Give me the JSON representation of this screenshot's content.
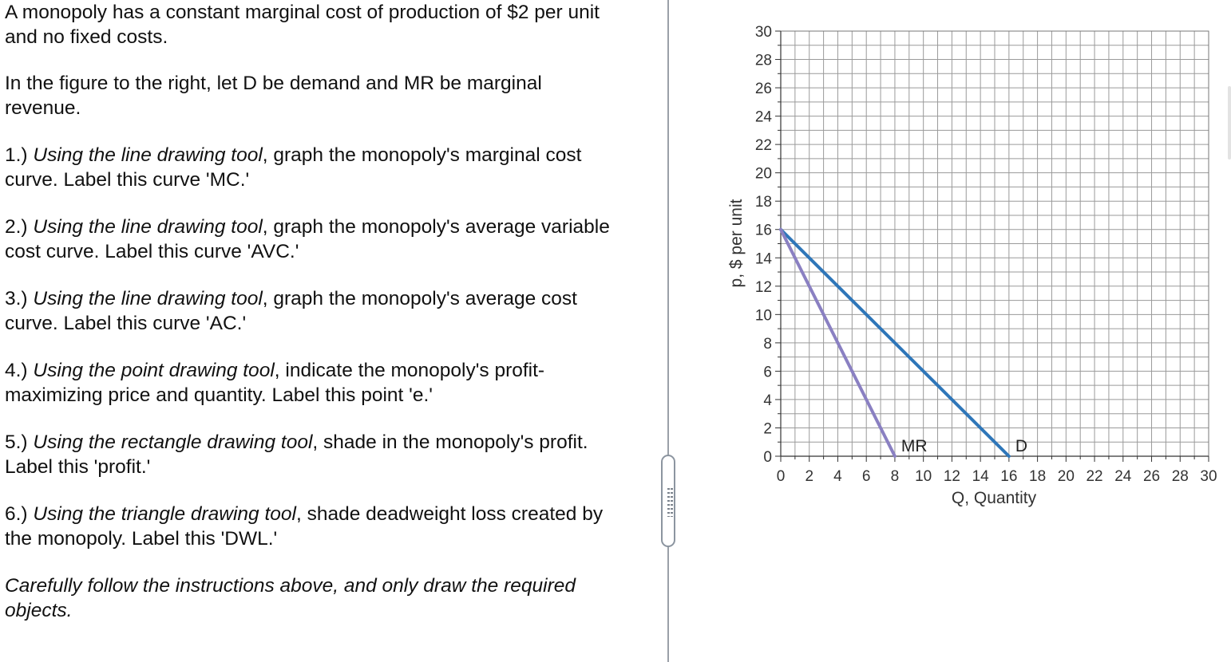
{
  "instructions": {
    "p0": [
      "A monopoly has a constant marginal cost of production of $2 per unit",
      "and no fixed costs."
    ],
    "p1": [
      "In the figure to the right, let D be demand and MR be marginal",
      "revenue."
    ],
    "items": [
      {
        "num": "1.) ",
        "tool": "Using the line drawing tool",
        "l1rest": ", graph the monopoly's marginal cost",
        "l2": "curve.  Label this curve 'MC.'"
      },
      {
        "num": "2.) ",
        "tool": "Using the line drawing tool",
        "l1rest": ", graph the monopoly's average variable",
        "l2": "cost curve.  Label this curve 'AVC.'"
      },
      {
        "num": "3.) ",
        "tool": "Using the line drawing tool",
        "l1rest": ", graph the monopoly's average cost",
        "l2": "curve.  Label this curve 'AC.'"
      },
      {
        "num": "4.) ",
        "tool": "Using the point drawing tool",
        "l1rest": ", indicate the monopoly's profit-",
        "l2": "maximizing price and quantity.  Label this point 'e.'"
      },
      {
        "num": "5.) ",
        "tool": "Using the rectangle drawing tool",
        "l1rest": ", shade in the monopoly's profit.",
        "l2": "Label this 'profit.'"
      },
      {
        "num": "6.) ",
        "tool": "Using the triangle drawing tool",
        "l1rest": ", shade deadweight loss created by",
        "l2": "the monopoly.  Label this 'DWL.'"
      }
    ],
    "closing": [
      "Carefully follow the instructions above, and only draw the required",
      "objects."
    ]
  },
  "chart_data": {
    "type": "line",
    "xlabel": "Q, Quantity",
    "ylabel": "p, $ per unit",
    "xlim": [
      0,
      30
    ],
    "ylim": [
      0,
      30
    ],
    "xticks": [
      0,
      2,
      4,
      6,
      8,
      10,
      12,
      14,
      16,
      18,
      20,
      22,
      24,
      26,
      28,
      30
    ],
    "yticks": [
      0,
      2,
      4,
      6,
      8,
      10,
      12,
      14,
      16,
      18,
      20,
      22,
      24,
      26,
      28,
      30
    ],
    "grid": true,
    "series": [
      {
        "name": "D",
        "color": "#2e76b9",
        "points": [
          [
            0,
            16
          ],
          [
            16,
            0
          ]
        ]
      },
      {
        "name": "MR",
        "color": "#8a80c2",
        "points": [
          [
            0,
            16
          ],
          [
            8,
            0
          ]
        ]
      }
    ]
  }
}
